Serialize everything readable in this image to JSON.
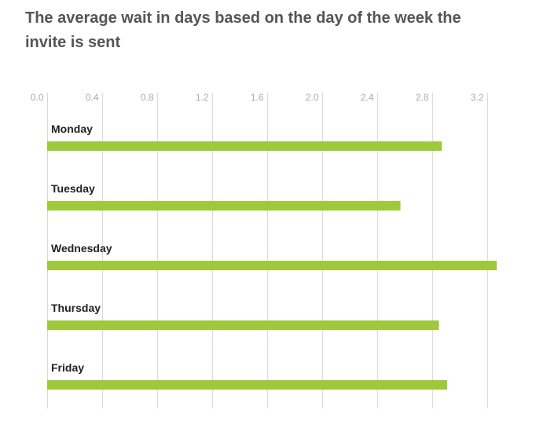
{
  "chart_data": {
    "type": "bar",
    "orientation": "horizontal",
    "title": "The average wait in days based on the day of the week the invite is sent",
    "xlabel": "",
    "ylabel": "",
    "categories": [
      "Monday",
      "Tuesday",
      "Wednesday",
      "Thursday",
      "Friday"
    ],
    "values": [
      2.87,
      2.57,
      3.27,
      2.85,
      2.91
    ],
    "xlim": [
      0,
      3.27
    ],
    "x_ticks": [
      "0.0",
      "0.4",
      "0.8",
      "1.2",
      "1.6",
      "2.0",
      "2.4",
      "2.8",
      "3.2"
    ],
    "x_tick_values": [
      0,
      0.4,
      0.8,
      1.2,
      1.6,
      2.0,
      2.4,
      2.8,
      3.2
    ],
    "bar_color": "#9ec93a",
    "grid_color": "#d9d9d9",
    "grid": true,
    "axis_position": "top",
    "legend": "none"
  }
}
